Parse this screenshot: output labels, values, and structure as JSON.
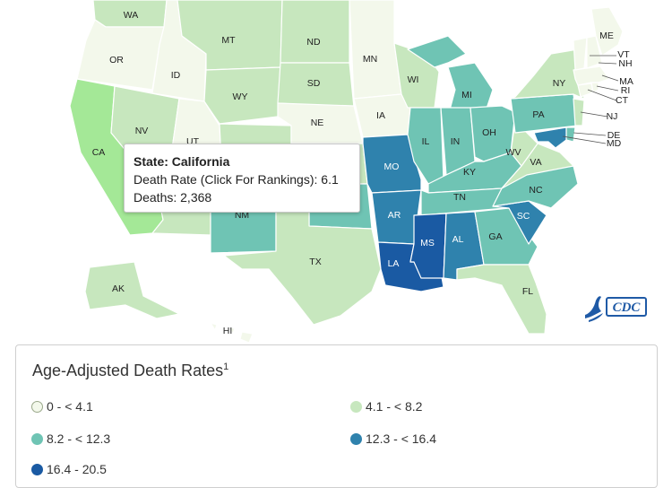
{
  "colors": {
    "bin0": "#f3f8eb",
    "bin1": "#c7e7be",
    "bin2": "#6fc4b4",
    "bin3": "#2f82ad",
    "bin4": "#1a5aa3",
    "ca_highlight": "#a4e897",
    "border": "#ffffff"
  },
  "tooltip": {
    "state_line": "State: California",
    "rate_line": "Death Rate (Click For Rankings): 6.1",
    "deaths_line": "Deaths: 2,368"
  },
  "legend": {
    "title": "Age-Adjusted Death Rates",
    "title_sup": "1",
    "items": [
      {
        "label": "0 - < 4.1",
        "color": "#f3f8eb"
      },
      {
        "label": "4.1 - < 8.2",
        "color": "#c7e7be"
      },
      {
        "label": "8.2 - < 12.3",
        "color": "#6fc4b4"
      },
      {
        "label": "12.3 - < 16.4",
        "color": "#2f82ad"
      },
      {
        "label": "16.4 - 20.5",
        "color": "#1a5aa3"
      }
    ]
  },
  "map": {
    "states": {
      "WA": {
        "bin": 1
      },
      "OR": {
        "bin": 0
      },
      "CA": {
        "bin": 1,
        "highlight": true
      },
      "ID": {
        "bin": 0
      },
      "NV": {
        "bin": 1
      },
      "UT": {
        "bin": 0
      },
      "AZ": {
        "bin": 1
      },
      "MT": {
        "bin": 1
      },
      "WY": {
        "bin": 1
      },
      "CO": {
        "bin": 1
      },
      "NM": {
        "bin": 2
      },
      "ND": {
        "bin": 1
      },
      "SD": {
        "bin": 1
      },
      "NE": {
        "bin": 0
      },
      "KS": {
        "bin": 1
      },
      "OK": {
        "bin": 2
      },
      "TX": {
        "bin": 1
      },
      "MN": {
        "bin": 0
      },
      "IA": {
        "bin": 0
      },
      "MO": {
        "bin": 3
      },
      "AR": {
        "bin": 3
      },
      "LA": {
        "bin": 4
      },
      "WI": {
        "bin": 1
      },
      "IL": {
        "bin": 2
      },
      "MI": {
        "bin": 2
      },
      "IN": {
        "bin": 2
      },
      "OH": {
        "bin": 2
      },
      "KY": {
        "bin": 2
      },
      "TN": {
        "bin": 2
      },
      "MS": {
        "bin": 4
      },
      "AL": {
        "bin": 3
      },
      "GA": {
        "bin": 2
      },
      "FL": {
        "bin": 1
      },
      "SC": {
        "bin": 3
      },
      "NC": {
        "bin": 2
      },
      "VA": {
        "bin": 1
      },
      "WV": {
        "bin": 1
      },
      "PA": {
        "bin": 2
      },
      "NY": {
        "bin": 1
      },
      "ME": {
        "bin": 0
      },
      "VT": {
        "bin": 0
      },
      "NH": {
        "bin": 0
      },
      "MA": {
        "bin": 0
      },
      "RI": {
        "bin": 0
      },
      "CT": {
        "bin": 0
      },
      "NJ": {
        "bin": 1
      },
      "DE": {
        "bin": 2
      },
      "MD": {
        "bin": 3
      },
      "AK": {
        "bin": 1
      },
      "HI": {
        "bin": 0
      }
    }
  },
  "logo": {
    "text": "CDC"
  }
}
